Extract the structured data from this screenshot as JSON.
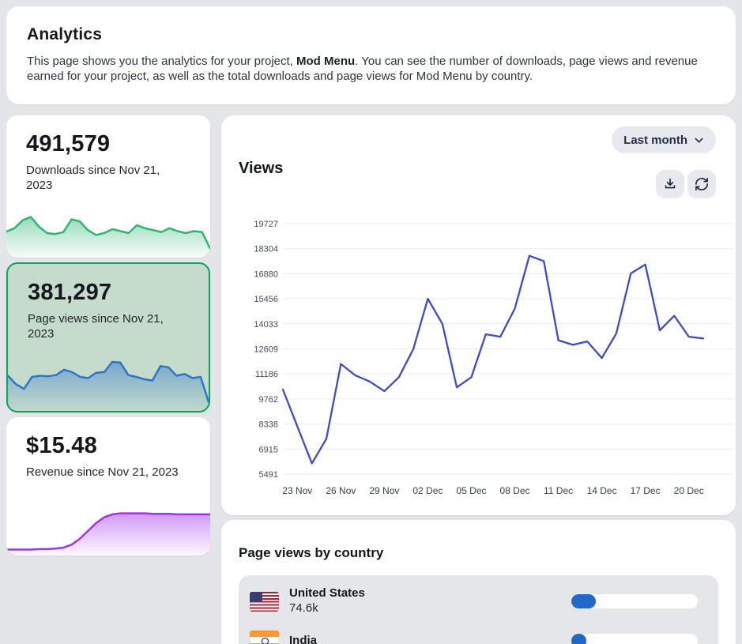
{
  "header": {
    "title": "Analytics",
    "description_prefix": "This page shows you the analytics for your project, ",
    "project_name": "Mod Menu",
    "description_suffix": ". You can see the number of downloads, page views and revenue earned for your project, as well as the total downloads and page views for Mod Menu by country."
  },
  "stats": [
    {
      "id": "downloads",
      "value": "491,579",
      "label": "Downloads since Nov 21, 2023",
      "selected": false,
      "accent": "#30b570"
    },
    {
      "id": "page_views",
      "value": "381,297",
      "label": "Page views since Nov 21, 2023",
      "selected": true,
      "accent": "#2e74c9"
    },
    {
      "id": "revenue",
      "value": "$15.48",
      "label": "Revenue since Nov 21, 2023",
      "selected": false,
      "accent": "#a133ec"
    }
  ],
  "views_panel": {
    "range_label": "Last month",
    "title": "Views",
    "icons": [
      "download-icon",
      "refresh-icon"
    ]
  },
  "chart_data": [
    {
      "type": "line",
      "title": "Views",
      "x": [
        "22 Nov",
        "23 Nov",
        "24 Nov",
        "25 Nov",
        "26 Nov",
        "27 Nov",
        "28 Nov",
        "29 Nov",
        "30 Nov",
        "01 Dec",
        "02 Dec",
        "03 Dec",
        "04 Dec",
        "05 Dec",
        "06 Dec",
        "07 Dec",
        "08 Dec",
        "09 Dec",
        "10 Dec",
        "11 Dec",
        "12 Dec",
        "13 Dec",
        "14 Dec",
        "15 Dec",
        "16 Dec",
        "17 Dec",
        "18 Dec",
        "19 Dec",
        "20 Dec",
        "21 Dec"
      ],
      "values": [
        10300,
        8200,
        6100,
        7500,
        11750,
        11100,
        10750,
        10200,
        11000,
        12600,
        15456,
        14033,
        10420,
        11000,
        13440,
        13300,
        14900,
        17900,
        17600,
        13100,
        12840,
        13030,
        12090,
        13480,
        16900,
        17400,
        13660,
        14490,
        13300,
        13200
      ],
      "yticks": [
        5491,
        6915,
        8338,
        9762,
        11186,
        12609,
        14033,
        15456,
        16880,
        18304,
        19727
      ],
      "xtick_labels": [
        "23 Nov",
        "26 Nov",
        "29 Nov",
        "02 Dec",
        "05 Dec",
        "08 Dec",
        "11 Dec",
        "14 Dec",
        "17 Dec",
        "20 Dec"
      ],
      "ylim": [
        5491,
        19727
      ],
      "line_color": "#3e4bc2",
      "grid": "horizontal",
      "legend": "none"
    },
    {
      "type": "area",
      "name": "downloads-sparkline",
      "color": "#30b570",
      "values": [
        45,
        52,
        68,
        75,
        55,
        42,
        40,
        44,
        70,
        66,
        48,
        38,
        42,
        50,
        46,
        42,
        58,
        52,
        48,
        44,
        52,
        46,
        42,
        46,
        44,
        10
      ]
    },
    {
      "type": "area",
      "name": "pageviews-sparkline",
      "color": "#2e74c9",
      "values": [
        52,
        38,
        30,
        50,
        52,
        51,
        53,
        62,
        58,
        50,
        48,
        57,
        58,
        75,
        74,
        53,
        50,
        46,
        44,
        68,
        66,
        52,
        55,
        48,
        50,
        8
      ]
    },
    {
      "type": "area",
      "name": "revenue-sparkline",
      "color": "#a133ec",
      "values": [
        4,
        4,
        4,
        4,
        5,
        5,
        6,
        8,
        14,
        26,
        42,
        58,
        70,
        76,
        78,
        78,
        78,
        78,
        77,
        77,
        77,
        76,
        76,
        76,
        76,
        76
      ]
    }
  ],
  "countries_panel": {
    "title": "Page views by country",
    "rows": [
      {
        "country": "United States",
        "value": "74.6k",
        "bar_pct": 19.6,
        "flag": "us"
      },
      {
        "country": "India",
        "value": "",
        "bar_pct": 12,
        "flag": "in"
      }
    ]
  },
  "colors": {
    "page_background": "#e3e5e9",
    "card_background": "#ffffff",
    "selected_card_background": "#c5dccd",
    "selected_card_border": "#0aa55c",
    "chart_line": "#3e4bc2",
    "progress_fill": "#2268c8",
    "button_background": "#e7e9ee"
  }
}
